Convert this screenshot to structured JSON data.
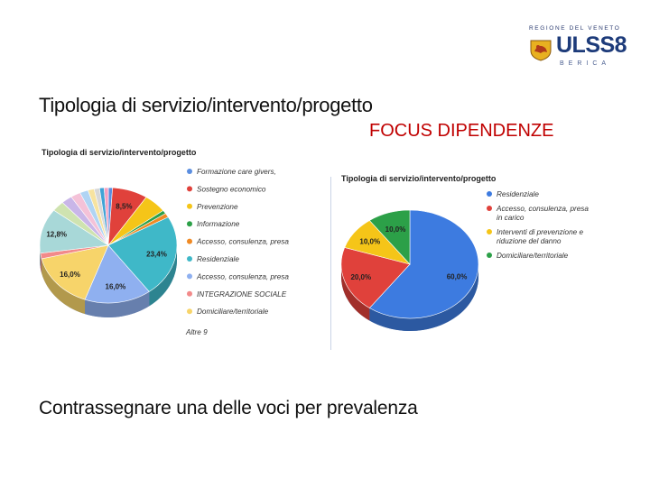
{
  "header": {
    "logo_region": "REGIONE DEL VENETO",
    "logo_name": "ULSS8",
    "logo_sub": "BERICA"
  },
  "slide": {
    "title": "Tipologia di servizio/intervento/progetto",
    "focus": "FOCUS DIPENDENZE",
    "bottom_text": "Contrassegnare una delle voci per prevalenza"
  },
  "chart_data": [
    {
      "type": "pie",
      "title": "Tipologia di servizio/intervento/progetto",
      "legend_position": "right",
      "categories": [
        "Formazione care givers,",
        "Sostegno economico",
        "Prevenzione",
        "Informazione",
        "Accesso, consulenza, presa",
        "Residenziale",
        "Accesso, consulenza, presa",
        "INTEGRAZIONE SOCIALE",
        "Domiciliare/territoriale"
      ],
      "legend_more": "Altre 9",
      "colors": [
        "#5b8ee0",
        "#e0413b",
        "#f5c518",
        "#2ca048",
        "#f08a24",
        "#3fb8c8",
        "#8fb0f0",
        "#f28a8a",
        "#f7d46a"
      ],
      "slices": [
        {
          "label": "",
          "value": 1.0,
          "color": "#5b8ee0"
        },
        {
          "label": "8,5%",
          "value": 8.5,
          "color": "#e0413b"
        },
        {
          "label": "",
          "value": 5.5,
          "color": "#f5c518"
        },
        {
          "label": "",
          "value": 1.0,
          "color": "#2ca048"
        },
        {
          "label": "",
          "value": 1.2,
          "color": "#f08a24"
        },
        {
          "label": "23,4%",
          "value": 23.4,
          "color": "#3fb8c8"
        },
        {
          "label": "16,0%",
          "value": 16.0,
          "color": "#8fb0f0"
        },
        {
          "label": "16,0%",
          "value": 16.0,
          "color": "#f7d46a"
        },
        {
          "label": "",
          "value": 1.6,
          "color": "#f28a8a"
        },
        {
          "label": "12,8%",
          "value": 12.8,
          "color": "#a8d8d8"
        },
        {
          "label": "",
          "value": 3.0,
          "color": "#cfe3b0"
        },
        {
          "label": "",
          "value": 2.6,
          "color": "#c9b6e8"
        },
        {
          "label": "",
          "value": 2.4,
          "color": "#f4c2d8"
        },
        {
          "label": "",
          "value": 2.0,
          "color": "#b0d4f4"
        },
        {
          "label": "",
          "value": 1.5,
          "color": "#f7e3a0"
        },
        {
          "label": "",
          "value": 1.3,
          "color": "#d8d8d8"
        },
        {
          "label": "",
          "value": 1.1,
          "color": "#3fa3d6"
        },
        {
          "label": "",
          "value": 1.0,
          "color": "#f5a0c0"
        }
      ]
    },
    {
      "type": "pie",
      "title": "Tipologia di servizio/intervento/progetto",
      "legend_position": "right",
      "categories": [
        "Residenziale",
        "Accesso, consulenza, presa in carico",
        "Interventi di prevenzione e riduzione del danno",
        "Domiciliare/territoriale"
      ],
      "legend_lines": [
        [
          "Residenziale"
        ],
        [
          "Accesso, consulenza, presa",
          "in carico"
        ],
        [
          "Interventi di prevenzione e",
          "riduzione del danno"
        ],
        [
          "Domiciliare/territoriale"
        ]
      ],
      "colors": [
        "#3d7be0",
        "#e0413b",
        "#f5c518",
        "#2ca048"
      ],
      "slices": [
        {
          "label": "60,0%",
          "value": 60.0,
          "color": "#3d7be0"
        },
        {
          "label": "20,0%",
          "value": 20.0,
          "color": "#e0413b"
        },
        {
          "label": "10,0%",
          "value": 10.0,
          "color": "#f5c518"
        },
        {
          "label": "10,0%",
          "value": 10.0,
          "color": "#2ca048"
        }
      ]
    }
  ]
}
